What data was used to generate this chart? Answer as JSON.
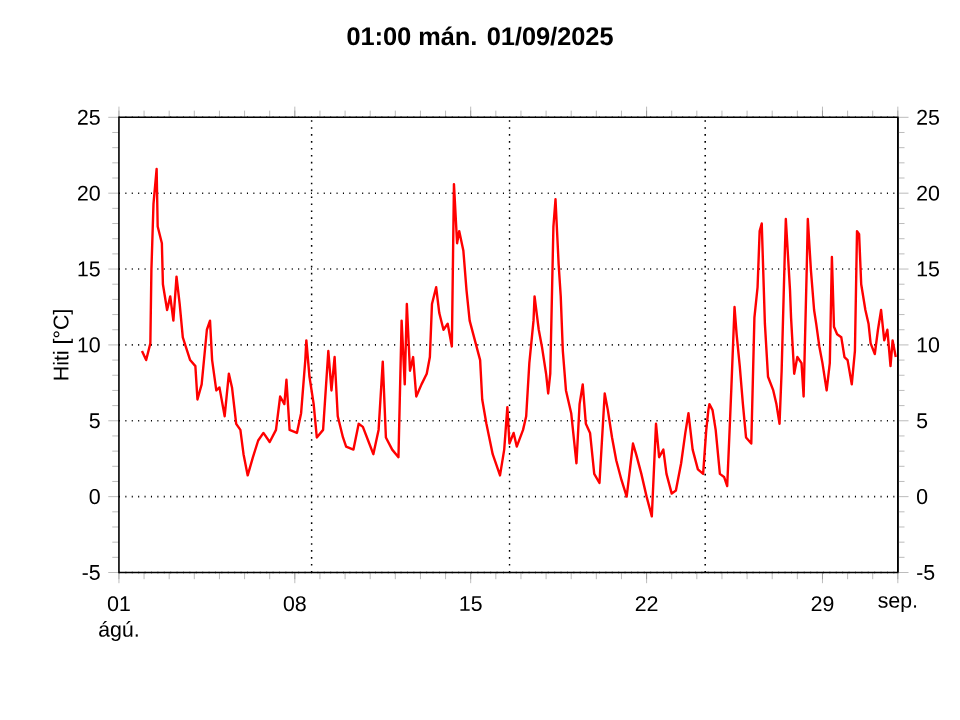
{
  "chart_data": {
    "type": "line",
    "title": "01:00   mán.  01/09/2025",
    "ylabel": "Hiti [°C]",
    "grid": "y",
    "xlim": [
      "2025-08-01T00:00",
      "2025-09-01T00:00"
    ],
    "xticks": [
      {
        "value": "2025-08-01",
        "label": "01 ágú."
      },
      {
        "value": "2025-08-08",
        "label": "08"
      },
      {
        "value": "2025-08-15",
        "label": "15"
      },
      {
        "value": "2025-08-22",
        "label": "22"
      },
      {
        "value": "2025-08-29",
        "label": "29"
      },
      {
        "value": "2025-09-01",
        "label": "sep."
      }
    ],
    "ylim": [
      -5,
      25
    ],
    "yticks": [
      -5,
      0,
      5,
      10,
      15,
      20,
      25
    ],
    "y2lim": [
      -5,
      25
    ],
    "y2ticks": [
      -5,
      0,
      5,
      10,
      15,
      20,
      25
    ],
    "ref_lines": [
      {
        "axis": "x",
        "value": "2025-08-08T16:00",
        "color": "#000000",
        "line_style": "dotted"
      },
      {
        "axis": "x",
        "value": "2025-08-16T13:00",
        "color": "#000000",
        "line_style": "dotted"
      },
      {
        "axis": "x",
        "value": "2025-08-24T08:00",
        "color": "#000000",
        "line_style": "dotted"
      }
    ],
    "x": [
      "2025-08-01T22:00",
      "2025-08-02T02:00",
      "2025-08-02T06:00",
      "2025-08-02T07:00",
      "2025-08-02T09:00",
      "2025-08-02T12:00",
      "2025-08-02T13:00",
      "2025-08-02T17:00",
      "2025-08-02T18:00",
      "2025-08-02T22:00",
      "2025-08-03T01:00",
      "2025-08-03T04:00",
      "2025-08-03T07:00",
      "2025-08-03T10:00",
      "2025-08-03T13:00",
      "2025-08-03T20:00",
      "2025-08-04T01:00",
      "2025-08-04T03:00",
      "2025-08-04T07:00",
      "2025-08-04T12:00",
      "2025-08-04T15:00",
      "2025-08-04T17:00",
      "2025-08-04T21:00",
      "2025-08-05T00:00",
      "2025-08-05T05:00",
      "2025-08-05T09:00",
      "2025-08-05T12:00",
      "2025-08-05T16:00",
      "2025-08-05T20:00",
      "2025-08-05T23:00",
      "2025-08-06T03:00",
      "2025-08-06T08:00",
      "2025-08-06T13:00",
      "2025-08-06T18:00",
      "2025-08-07T00:00",
      "2025-08-07T06:00",
      "2025-08-07T10:00",
      "2025-08-07T14:00",
      "2025-08-07T16:00",
      "2025-08-07T19:00",
      "2025-08-08T02:00",
      "2025-08-08T06:00",
      "2025-08-08T10:00",
      "2025-08-08T11:00",
      "2025-08-08T14:00",
      "2025-08-08T18:00",
      "2025-08-08T21:00",
      "2025-08-09T03:00",
      "2025-08-09T08:00",
      "2025-08-09T11:00",
      "2025-08-09T14:00",
      "2025-08-09T17:00",
      "2025-08-09T22:00",
      "2025-08-10T01:00",
      "2025-08-10T08:00",
      "2025-08-10T13:00",
      "2025-08-10T17:00",
      "2025-08-10T22:00",
      "2025-08-11T03:00",
      "2025-08-11T08:00",
      "2025-08-11T12:00",
      "2025-08-11T15:00",
      "2025-08-11T21:00",
      "2025-08-12T03:00",
      "2025-08-12T06:00",
      "2025-08-12T09:00",
      "2025-08-12T11:00",
      "2025-08-12T14:00",
      "2025-08-12T17:00",
      "2025-08-12T20:00",
      "2025-08-13T01:00",
      "2025-08-13T06:00",
      "2025-08-13T09:00",
      "2025-08-13T11:00",
      "2025-08-13T15:00",
      "2025-08-13T18:00",
      "2025-08-13T22:00",
      "2025-08-14T02:00",
      "2025-08-14T06:00",
      "2025-08-14T08:00",
      "2025-08-14T11:00",
      "2025-08-14T13:00",
      "2025-08-14T17:00",
      "2025-08-14T20:00",
      "2025-08-14T23:00",
      "2025-08-15T04:00",
      "2025-08-15T09:00",
      "2025-08-15T11:00",
      "2025-08-15T15:00",
      "2025-08-15T21:00",
      "2025-08-16T04:00",
      "2025-08-16T08:00",
      "2025-08-16T11:00",
      "2025-08-16T13:00",
      "2025-08-16T17:00",
      "2025-08-16T20:00",
      "2025-08-17T02:00",
      "2025-08-17T05:00",
      "2025-08-17T08:00",
      "2025-08-17T12:00",
      "2025-08-17T13:00",
      "2025-08-17T17:00",
      "2025-08-17T20:00",
      "2025-08-18T00:00",
      "2025-08-18T02:00",
      "2025-08-18T04:00",
      "2025-08-18T07:00",
      "2025-08-18T09:00",
      "2025-08-18T12:00",
      "2025-08-18T14:00",
      "2025-08-18T16:00",
      "2025-08-18T19:00",
      "2025-08-19T00:00",
      "2025-08-19T05:00",
      "2025-08-19T08:00",
      "2025-08-19T11:00",
      "2025-08-19T14:00",
      "2025-08-19T18:00",
      "2025-08-19T22:00",
      "2025-08-20T03:00",
      "2025-08-20T08:00",
      "2025-08-20T11:00",
      "2025-08-20T15:00",
      "2025-08-20T19:00",
      "2025-08-21T00:00",
      "2025-08-21T05:00",
      "2025-08-21T11:00",
      "2025-08-21T14:00",
      "2025-08-21T19:00",
      "2025-08-22T00:00",
      "2025-08-22T05:00",
      "2025-08-22T09:00",
      "2025-08-22T12:00",
      "2025-08-22T16:00",
      "2025-08-22T19:00",
      "2025-08-23T00:00",
      "2025-08-23T04:00",
      "2025-08-23T09:00",
      "2025-08-23T13:00",
      "2025-08-23T16:00",
      "2025-08-23T20:00",
      "2025-08-24T01:00",
      "2025-08-24T06:00",
      "2025-08-24T09:00",
      "2025-08-24T11:00",
      "2025-08-24T12:00",
      "2025-08-24T15:00",
      "2025-08-24T18:00",
      "2025-08-24T22:00",
      "2025-08-25T02:00",
      "2025-08-25T05:00",
      "2025-08-25T07:00",
      "2025-08-25T09:00",
      "2025-08-25T12:00",
      "2025-08-25T14:00",
      "2025-08-25T17:00",
      "2025-08-25T20:00",
      "2025-08-25T23:00",
      "2025-08-26T04:00",
      "2025-08-26T07:00",
      "2025-08-26T10:00",
      "2025-08-26T12:00",
      "2025-08-26T14:00",
      "2025-08-26T17:00",
      "2025-08-26T20:00",
      "2025-08-27T01:00",
      "2025-08-27T04:00",
      "2025-08-27T07:00",
      "2025-08-27T09:00",
      "2025-08-27T12:00",
      "2025-08-27T13:00",
      "2025-08-27T17:00",
      "2025-08-27T18:00",
      "2025-08-27T21:00",
      "2025-08-28T00:00",
      "2025-08-28T04:00",
      "2025-08-28T06:00",
      "2025-08-28T09:00",
      "2025-08-28T10:00",
      "2025-08-28T13:00",
      "2025-08-28T16:00",
      "2025-08-28T18:00",
      "2025-08-28T21:00",
      "2025-08-29T00:00",
      "2025-08-29T04:00",
      "2025-08-29T07:00",
      "2025-08-29T09:00",
      "2025-08-29T11:00",
      "2025-08-29T14:00",
      "2025-08-29T18:00",
      "2025-08-29T21:00",
      "2025-08-30T00:00",
      "2025-08-30T04:00",
      "2025-08-30T07:00",
      "2025-08-30T09:00",
      "2025-08-30T11:00",
      "2025-08-30T13:00",
      "2025-08-30T17:00",
      "2025-08-30T20:00",
      "2025-08-30T22:00",
      "2025-08-31T02:00",
      "2025-08-31T05:00",
      "2025-08-31T08:00",
      "2025-08-31T11:00",
      "2025-08-31T14:00",
      "2025-08-31T17:00",
      "2025-08-31T19:00",
      "2025-08-31T22:00"
    ],
    "series": [
      {
        "color": "#ff0000",
        "values": [
          9.6,
          9.0,
          10.1,
          14.9,
          19.3,
          21.6,
          17.8,
          16.7,
          14.0,
          12.3,
          13.2,
          11.6,
          14.5,
          12.7,
          10.5,
          9.0,
          8.6,
          6.4,
          7.4,
          11.0,
          11.6,
          9.0,
          7.0,
          7.2,
          5.3,
          8.1,
          7.2,
          4.8,
          4.4,
          2.8,
          1.4,
          2.6,
          3.7,
          4.2,
          3.6,
          4.4,
          6.6,
          6.1,
          7.7,
          4.4,
          4.2,
          5.5,
          9.0,
          10.3,
          7.9,
          6.1,
          3.9,
          4.4,
          9.6,
          7.0,
          9.2,
          5.3,
          3.9,
          3.3,
          3.1,
          4.8,
          4.6,
          3.7,
          2.8,
          4.4,
          8.9,
          3.9,
          3.1,
          2.6,
          11.6,
          7.4,
          12.7,
          8.3,
          9.2,
          6.6,
          7.4,
          8.1,
          9.2,
          12.7,
          13.8,
          12.1,
          11.0,
          11.4,
          9.9,
          20.6,
          16.7,
          17.5,
          16.2,
          13.6,
          11.6,
          10.3,
          9.0,
          6.4,
          4.8,
          2.8,
          1.4,
          3.1,
          5.9,
          3.5,
          4.2,
          3.3,
          4.4,
          5.3,
          8.8,
          11.6,
          13.2,
          11.0,
          9.9,
          8.1,
          6.8,
          8.1,
          17.8,
          19.6,
          15.3,
          13.2,
          9.6,
          7.0,
          5.5,
          2.2,
          6.1,
          7.4,
          4.8,
          4.2,
          1.5,
          0.9,
          6.8,
          5.7,
          3.9,
          2.4,
          1.1,
          0.0,
          3.5,
          2.8,
          1.5,
          0.0,
          -1.3,
          4.8,
          2.6,
          3.1,
          1.5,
          0.2,
          0.4,
          2.2,
          4.2,
          5.5,
          3.1,
          1.8,
          1.5,
          4.4,
          5.7,
          6.1,
          5.7,
          4.4,
          1.5,
          1.3,
          0.7,
          3.9,
          7.2,
          12.5,
          10.7,
          8.6,
          6.1,
          3.9,
          3.5,
          11.8,
          13.8,
          17.5,
          18.0,
          11.4,
          7.9,
          7.0,
          6.1,
          4.8,
          8.3,
          16.0,
          18.3,
          13.6,
          11.8,
          8.1,
          9.2,
          8.8,
          6.6,
          15.1,
          18.3,
          14.9,
          12.3,
          11.4,
          9.9,
          8.8,
          7.0,
          8.8,
          15.8,
          11.2,
          10.7,
          10.5,
          9.2,
          9.0,
          7.4,
          9.6,
          17.5,
          17.3,
          14.0,
          12.3,
          11.4,
          10.1,
          9.4,
          11.0,
          12.3,
          10.3,
          11.0,
          8.6,
          10.3,
          9.2
        ]
      }
    ]
  }
}
